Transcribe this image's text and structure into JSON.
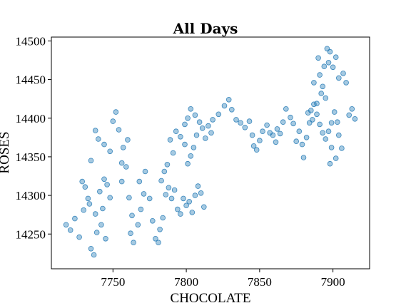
{
  "chart_data": {
    "type": "scatter",
    "title": "All Days",
    "xlabel": "CHOCOLATE",
    "ylabel": "ROSES",
    "xlim": [
      7708,
      7925
    ],
    "ylim": [
      14205,
      14505
    ],
    "xticks": [
      7750,
      7800,
      7850,
      7900
    ],
    "yticks": [
      14250,
      14300,
      14350,
      14400,
      14450,
      14500
    ],
    "grid": false,
    "color": "#1f77b4",
    "points": [
      [
        7718,
        14262
      ],
      [
        7721,
        14255
      ],
      [
        7724,
        14270
      ],
      [
        7727,
        14246
      ],
      [
        7730,
        14281
      ],
      [
        7733,
        14296
      ],
      [
        7735,
        14231
      ],
      [
        7737,
        14223
      ],
      [
        7739,
        14252
      ],
      [
        7741,
        14305
      ],
      [
        7743,
        14283
      ],
      [
        7744,
        14321
      ],
      [
        7746,
        14314
      ],
      [
        7748,
        14297
      ],
      [
        7745,
        14244
      ],
      [
        7742,
        14262
      ],
      [
        7738,
        14276
      ],
      [
        7734,
        14289
      ],
      [
        7731,
        14311
      ],
      [
        7729,
        14318
      ],
      [
        7735,
        14345
      ],
      [
        7740,
        14373
      ],
      [
        7738,
        14384
      ],
      [
        7744,
        14366
      ],
      [
        7748,
        14357
      ],
      [
        7750,
        14396
      ],
      [
        7752,
        14408
      ],
      [
        7754,
        14385
      ],
      [
        7756,
        14342
      ],
      [
        7757,
        14362
      ],
      [
        7759,
        14337
      ],
      [
        7760,
        14372
      ],
      [
        7756,
        14318
      ],
      [
        7761,
        14297
      ],
      [
        7763,
        14274
      ],
      [
        7762,
        14251
      ],
      [
        7764,
        14239
      ],
      [
        7767,
        14262
      ],
      [
        7769,
        14282
      ],
      [
        7771,
        14302
      ],
      [
        7768,
        14318
      ],
      [
        7772,
        14331
      ],
      [
        7775,
        14296
      ],
      [
        7777,
        14267
      ],
      [
        7779,
        14244
      ],
      [
        7781,
        14239
      ],
      [
        7782,
        14256
      ],
      [
        7784,
        14271
      ],
      [
        7786,
        14301
      ],
      [
        7783,
        14319
      ],
      [
        7788,
        14310
      ],
      [
        7790,
        14296
      ],
      [
        7792,
        14307
      ],
      [
        7794,
        14282
      ],
      [
        7796,
        14276
      ],
      [
        7798,
        14296
      ],
      [
        7800,
        14287
      ],
      [
        7802,
        14292
      ],
      [
        7804,
        14278
      ],
      [
        7806,
        14300
      ],
      [
        7808,
        14312
      ],
      [
        7810,
        14303
      ],
      [
        7812,
        14285
      ],
      [
        7785,
        14331
      ],
      [
        7787,
        14340
      ],
      [
        7791,
        14355
      ],
      [
        7789,
        14372
      ],
      [
        7793,
        14383
      ],
      [
        7796,
        14376
      ],
      [
        7799,
        14366
      ],
      [
        7801,
        14341
      ],
      [
        7803,
        14351
      ],
      [
        7805,
        14362
      ],
      [
        7807,
        14378
      ],
      [
        7799,
        14392
      ],
      [
        7801,
        14400
      ],
      [
        7803,
        14412
      ],
      [
        7806,
        14404
      ],
      [
        7809,
        14395
      ],
      [
        7811,
        14387
      ],
      [
        7813,
        14374
      ],
      [
        7815,
        14390
      ],
      [
        7817,
        14381
      ],
      [
        7818,
        14398
      ],
      [
        7822,
        14405
      ],
      [
        7826,
        14416
      ],
      [
        7829,
        14424
      ],
      [
        7831,
        14411
      ],
      [
        7834,
        14398
      ],
      [
        7837,
        14394
      ],
      [
        7840,
        14388
      ],
      [
        7843,
        14396
      ],
      [
        7845,
        14378
      ],
      [
        7846,
        14364
      ],
      [
        7848,
        14359
      ],
      [
        7850,
        14371
      ],
      [
        7852,
        14383
      ],
      [
        7855,
        14391
      ],
      [
        7857,
        14381
      ],
      [
        7859,
        14378
      ],
      [
        7861,
        14369
      ],
      [
        7862,
        14386
      ],
      [
        7864,
        14380
      ],
      [
        7866,
        14395
      ],
      [
        7868,
        14412
      ],
      [
        7871,
        14401
      ],
      [
        7873,
        14393
      ],
      [
        7875,
        14370
      ],
      [
        7877,
        14383
      ],
      [
        7879,
        14366
      ],
      [
        7880,
        14349
      ],
      [
        7882,
        14375
      ],
      [
        7884,
        14394
      ],
      [
        7885,
        14410
      ],
      [
        7887,
        14418
      ],
      [
        7889,
        14405
      ],
      [
        7891,
        14392
      ],
      [
        7893,
        14381
      ],
      [
        7895,
        14373
      ],
      [
        7897,
        14383
      ],
      [
        7899,
        14394
      ],
      [
        7901,
        14408
      ],
      [
        7903,
        14395
      ],
      [
        7904,
        14378
      ],
      [
        7906,
        14361
      ],
      [
        7898,
        14341
      ],
      [
        7902,
        14348
      ],
      [
        7899,
        14362
      ],
      [
        7895,
        14426
      ],
      [
        7893,
        14441
      ],
      [
        7891,
        14456
      ],
      [
        7894,
        14467
      ],
      [
        7897,
        14472
      ],
      [
        7900,
        14466
      ],
      [
        7902,
        14479
      ],
      [
        7898,
        14486
      ],
      [
        7904,
        14452
      ],
      [
        7907,
        14458
      ],
      [
        7909,
        14446
      ],
      [
        7911,
        14404
      ],
      [
        7913,
        14412
      ],
      [
        7915,
        14399
      ],
      [
        7892,
        14432
      ],
      [
        7889,
        14419
      ],
      [
        7887,
        14446
      ],
      [
        7890,
        14478
      ],
      [
        7896,
        14490
      ],
      [
        7886,
        14398
      ],
      [
        7883,
        14407
      ]
    ]
  }
}
